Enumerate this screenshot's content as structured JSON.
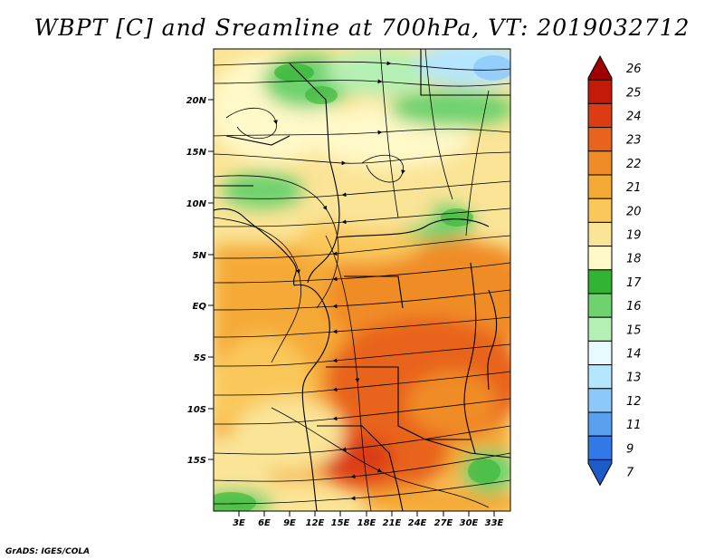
{
  "title": "WBPT [C] and Sreamline at 700hPa, VT: 2019032712",
  "credit": "GrADS: IGES/COLA",
  "map": {
    "lat_labels": [
      "20N",
      "15N",
      "10N",
      "5N",
      "EQ",
      "5S",
      "10S",
      "15S"
    ],
    "lon_labels": [
      "3E",
      "6E",
      "9E",
      "12E",
      "15E",
      "18E",
      "21E",
      "24E",
      "27E",
      "30E",
      "33E"
    ]
  },
  "colorbar": {
    "labels": [
      "26",
      "25",
      "24",
      "23",
      "22",
      "21",
      "20",
      "19",
      "18",
      "17",
      "16",
      "15",
      "14",
      "13",
      "12",
      "11",
      "9",
      "7"
    ],
    "colors": [
      "#a00000",
      "#c41a0a",
      "#dc3c14",
      "#e8641e",
      "#f08c28",
      "#f5aa37",
      "#fac85a",
      "#fae496",
      "#fff8c8",
      "#32b432",
      "#6ed26e",
      "#b4f0b4",
      "#e6faff",
      "#b4e6ff",
      "#8cc8fa",
      "#5aa0f0",
      "#3278e6",
      "#1e5ac8"
    ]
  }
}
